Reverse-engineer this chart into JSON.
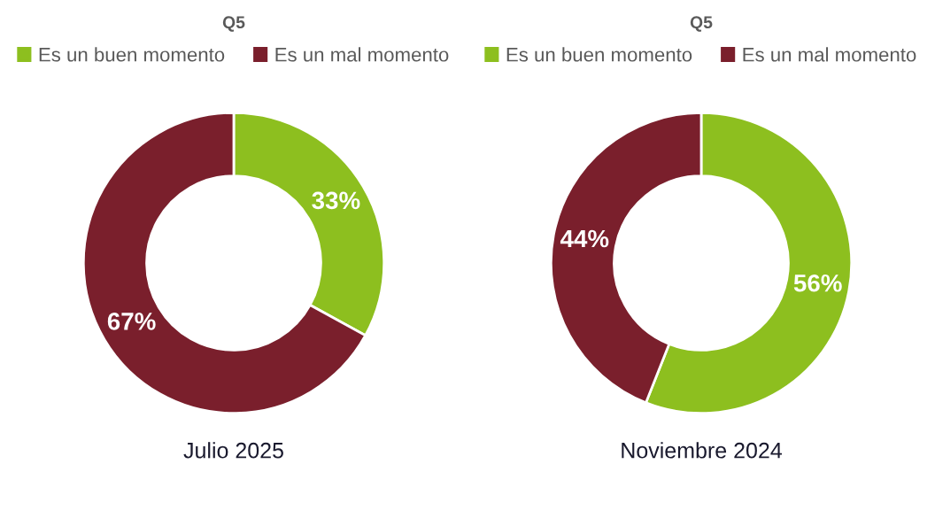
{
  "chart_data": [
    {
      "type": "donut",
      "title": "Q5",
      "categories": [
        "Es un buen momento",
        "Es un mal momento"
      ],
      "values": [
        33,
        67
      ],
      "colors": [
        "#8dbf1f",
        "#7a1f2c"
      ],
      "value_labels": [
        "33%",
        "67%"
      ],
      "legend": "top",
      "annotations": [
        "Julio 2025"
      ]
    },
    {
      "type": "donut",
      "title": "Q5",
      "categories": [
        "Es un buen momento",
        "Es un mal momento"
      ],
      "values": [
        56,
        44
      ],
      "colors": [
        "#8dbf1f",
        "#7a1f2c"
      ],
      "value_labels": [
        "56%",
        "44%"
      ],
      "legend": "top",
      "annotations": [
        "Noviembre 2024"
      ]
    }
  ]
}
